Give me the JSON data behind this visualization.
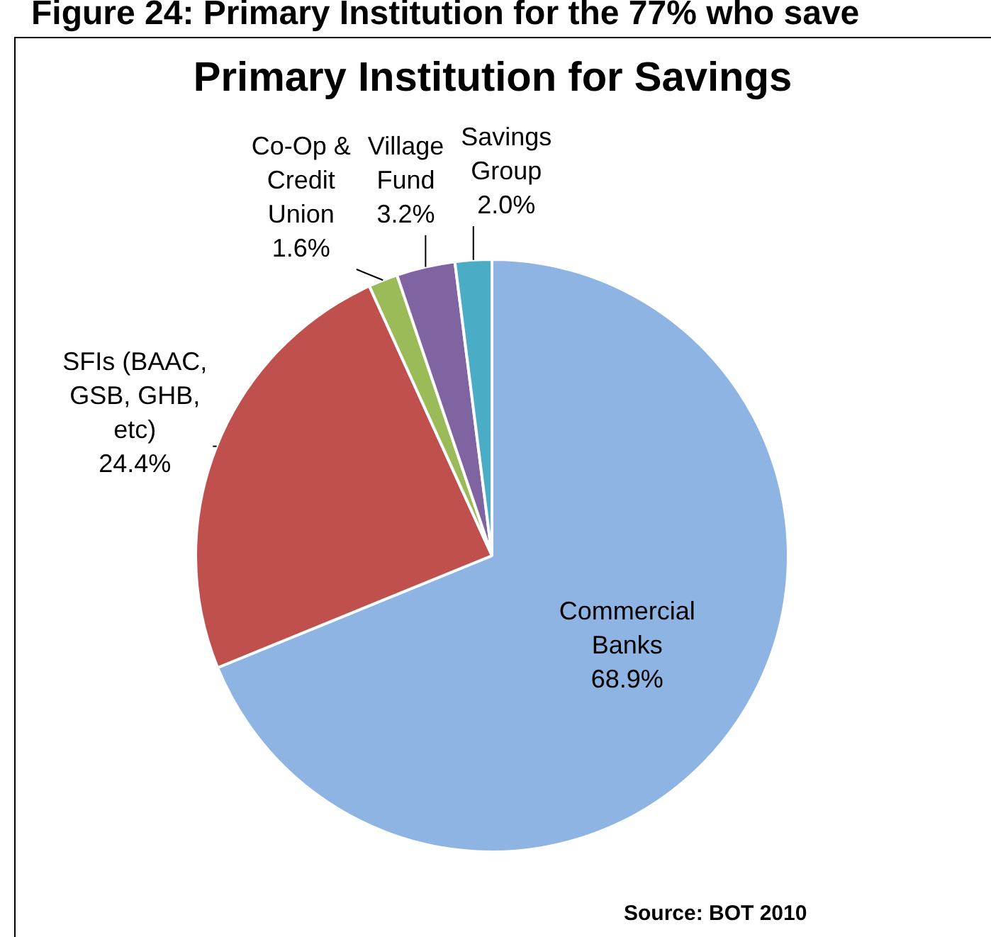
{
  "chart_data": {
    "type": "pie",
    "title": "Primary Institution for Savings",
    "annotations": [
      "Figure 24: Primary Institution for the 77% who save",
      "Source: BOT 2010"
    ],
    "categories": [
      "Commercial Banks",
      "SFIs (BAAC, GSB, GHB, etc)",
      "Co-Op & Credit Union",
      "Village Fund",
      "Savings Group"
    ],
    "values": [
      68.9,
      24.4,
      1.6,
      3.2,
      2.0
    ],
    "value_labels": [
      "68.9%",
      "24.4%",
      "1.6%",
      "3.2%",
      "2.0%"
    ],
    "colors": [
      "#8eb4e3",
      "#c0504d",
      "#9bbb59",
      "#8064a2",
      "#4bacc6"
    ],
    "legend": false
  }
}
